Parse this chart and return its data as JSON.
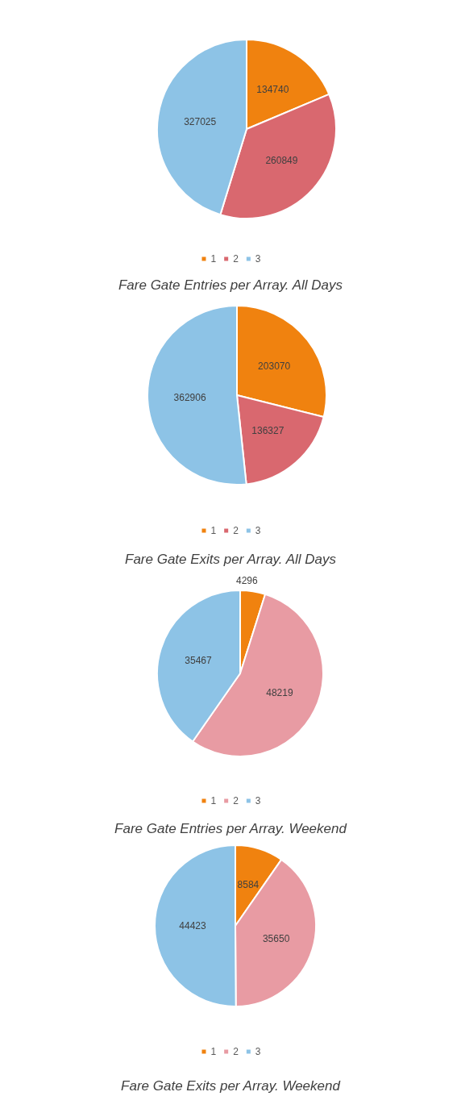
{
  "chart_data": [
    {
      "type": "pie",
      "title": "Fare Gate Entries per Array. All Days",
      "categories": [
        "1",
        "2",
        "3"
      ],
      "values": [
        134740,
        260849,
        327025
      ],
      "colors": [
        "#f0820f",
        "#d9686f",
        "#8dc3e6"
      ],
      "data_labels": true,
      "legend": "bottom"
    },
    {
      "type": "pie",
      "title": "Fare Gate Exits per Array. All Days",
      "categories": [
        "1",
        "2",
        "3"
      ],
      "values": [
        203070,
        136327,
        362906
      ],
      "colors": [
        "#f0820f",
        "#d9686f",
        "#8dc3e6"
      ],
      "data_labels": true,
      "legend": "bottom"
    },
    {
      "type": "pie",
      "title": "Fare Gate Entries per Array. Weekend",
      "categories": [
        "1",
        "2",
        "3"
      ],
      "values": [
        4296,
        48219,
        35467
      ],
      "colors": [
        "#f0820f",
        "#e89ba3",
        "#8dc3e6"
      ],
      "data_labels": true,
      "legend": "bottom"
    },
    {
      "type": "pie",
      "title": "Fare Gate Exits per Array. Weekend",
      "categories": [
        "1",
        "2",
        "3"
      ],
      "values": [
        8584,
        35650,
        44423
      ],
      "colors": [
        "#f0820f",
        "#e89ba3",
        "#8dc3e6"
      ],
      "data_labels": true,
      "legend": "bottom"
    }
  ]
}
